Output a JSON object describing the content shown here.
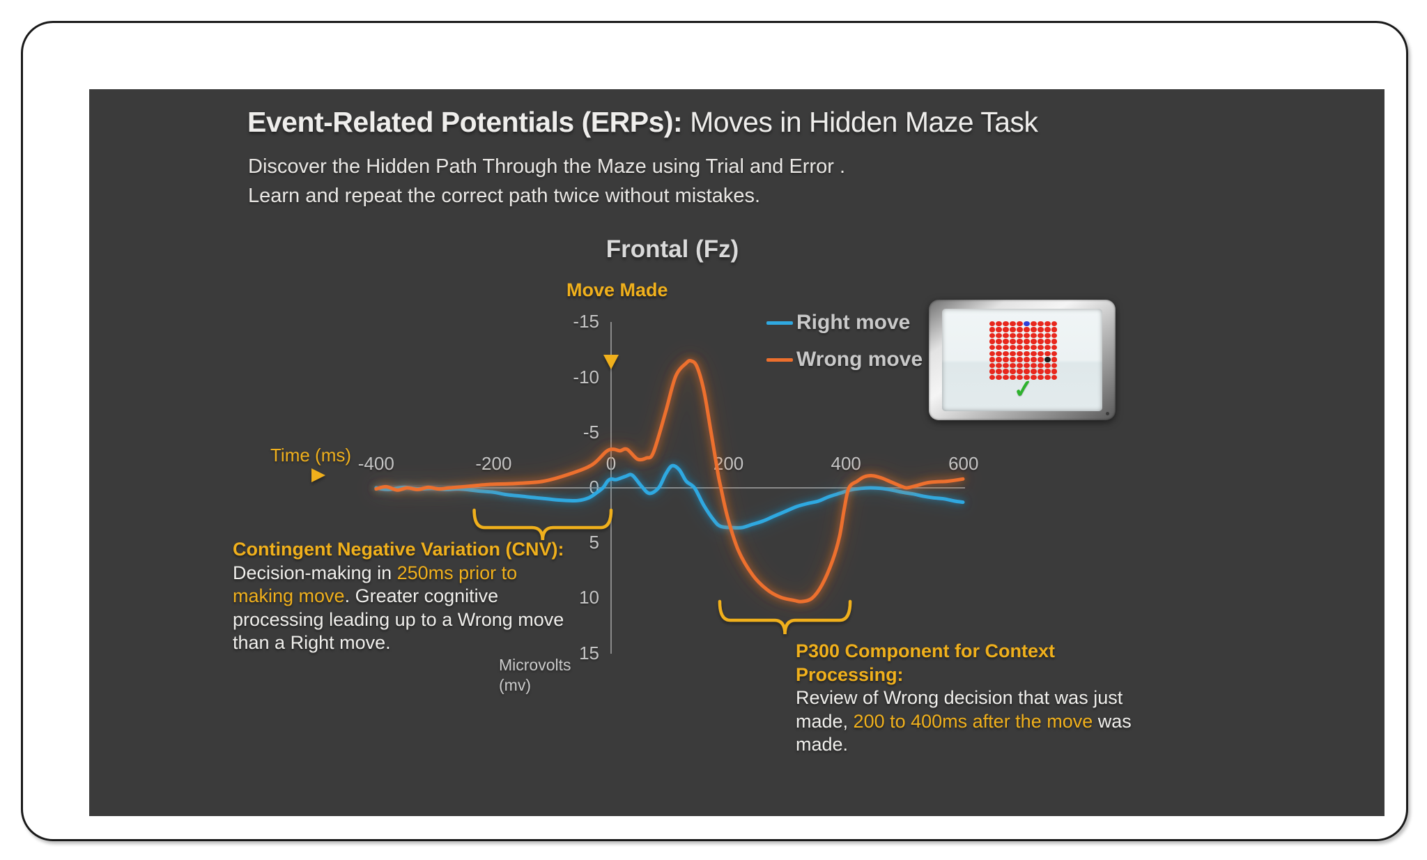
{
  "slide": {
    "title_bold": "Event-Related Potentials (ERPs):",
    "title_rest": " Moves in Hidden Maze Task",
    "subtitle_line1": "Discover the Hidden Path Through the Maze using Trial and Error .",
    "subtitle_line2": "Learn and repeat the correct path twice without mistakes."
  },
  "chart_data": {
    "type": "line",
    "title": "Frontal (Fz)",
    "x_axis": {
      "label": "Time (ms)",
      "ticks": [
        -400,
        -200,
        0,
        200,
        400,
        600
      ],
      "range": [
        -400,
        600
      ],
      "unit": "ms"
    },
    "y_axis": {
      "label_line1": "Microvolts",
      "label_line2": "(mv)",
      "ticks": [
        -15,
        -10,
        -5,
        0,
        5,
        10,
        15
      ],
      "range": [
        -15,
        15
      ],
      "inverted_negative_up": true
    },
    "event_marker": {
      "label": "Move Made",
      "time_ms": 0
    },
    "grid": "off",
    "legend_position": "top-right",
    "legend": [
      {
        "name": "Right move",
        "color": "#2FA9E1"
      },
      {
        "name": "Wrong move",
        "color": "#ED6F2D"
      }
    ],
    "series": [
      {
        "name": "Right move",
        "color": "#2FA9E1",
        "points": [
          [
            -400,
            0
          ],
          [
            -380,
            0.15
          ],
          [
            -352,
            -0.05
          ],
          [
            -329,
            0.1
          ],
          [
            -305,
            0.05
          ],
          [
            -281,
            0.15
          ],
          [
            -257,
            0.1
          ],
          [
            -222,
            0.3
          ],
          [
            -200,
            0.4
          ],
          [
            -180,
            0.6
          ],
          [
            -163,
            0.7
          ],
          [
            -145,
            0.8
          ],
          [
            -127,
            0.9
          ],
          [
            -109,
            1.0
          ],
          [
            -91,
            1.1
          ],
          [
            -74,
            1.15
          ],
          [
            -56,
            1.15
          ],
          [
            -38,
            0.9
          ],
          [
            -26,
            0.5
          ],
          [
            -14,
            0
          ],
          [
            -6,
            -0.6
          ],
          [
            0,
            -0.8
          ],
          [
            9,
            -0.75
          ],
          [
            25,
            -1.05
          ],
          [
            36,
            -1.15
          ],
          [
            51,
            -0.2
          ],
          [
            65,
            0.5
          ],
          [
            81,
            0
          ],
          [
            93,
            -1.25
          ],
          [
            104,
            -2.0
          ],
          [
            116,
            -1.65
          ],
          [
            128,
            -0.6
          ],
          [
            142,
            0
          ],
          [
            158,
            1.6
          ],
          [
            176,
            3.0
          ],
          [
            187,
            3.5
          ],
          [
            205,
            3.6
          ],
          [
            223,
            3.6
          ],
          [
            241,
            3.3
          ],
          [
            259,
            3.0
          ],
          [
            276,
            2.6
          ],
          [
            294,
            2.2
          ],
          [
            316,
            1.7
          ],
          [
            336,
            1.4
          ],
          [
            353,
            1.2
          ],
          [
            371,
            0.8
          ],
          [
            389,
            0.5
          ],
          [
            407,
            0.2
          ],
          [
            425,
            0.05
          ],
          [
            442,
            0
          ],
          [
            460,
            0.05
          ],
          [
            478,
            0.2
          ],
          [
            496,
            0.4
          ],
          [
            514,
            0.55
          ],
          [
            531,
            0.75
          ],
          [
            549,
            0.9
          ],
          [
            567,
            1.0
          ],
          [
            585,
            1.2
          ],
          [
            599,
            1.3
          ]
        ]
      },
      {
        "name": "Wrong move",
        "color": "#ED6F2D",
        "points": [
          [
            -400,
            0.1
          ],
          [
            -383,
            -0.1
          ],
          [
            -364,
            0.2
          ],
          [
            -347,
            0
          ],
          [
            -329,
            0.15
          ],
          [
            -311,
            -0.05
          ],
          [
            -293,
            0.1
          ],
          [
            -275,
            0
          ],
          [
            -251,
            -0.1
          ],
          [
            -210,
            -0.3
          ],
          [
            -163,
            -0.4
          ],
          [
            -115,
            -0.6
          ],
          [
            -68,
            -1.3
          ],
          [
            -32,
            -2.1
          ],
          [
            -8,
            -3.3
          ],
          [
            4,
            -3.5
          ],
          [
            15,
            -3.35
          ],
          [
            27,
            -3.5
          ],
          [
            45,
            -2.6
          ],
          [
            60,
            -2.7
          ],
          [
            72,
            -3.2
          ],
          [
            93,
            -6.9
          ],
          [
            110,
            -10.1
          ],
          [
            128,
            -11.3
          ],
          [
            136,
            -11.5
          ],
          [
            146,
            -11.0
          ],
          [
            158,
            -8.8
          ],
          [
            170,
            -5.1
          ],
          [
            182,
            -1.3
          ],
          [
            187,
            0
          ],
          [
            199,
            2.8
          ],
          [
            217,
            5.7
          ],
          [
            241,
            7.9
          ],
          [
            265,
            9.2
          ],
          [
            288,
            9.9
          ],
          [
            312,
            10.2
          ],
          [
            324,
            10.3
          ],
          [
            342,
            10.0
          ],
          [
            359,
            8.8
          ],
          [
            377,
            6.6
          ],
          [
            389,
            4.4
          ],
          [
            397,
            1.9
          ],
          [
            405,
            0
          ],
          [
            419,
            -0.6
          ],
          [
            431,
            -1.0
          ],
          [
            445,
            -1.1
          ],
          [
            460,
            -0.9
          ],
          [
            478,
            -0.5
          ],
          [
            496,
            -0.1
          ],
          [
            504,
            0
          ],
          [
            520,
            -0.2
          ],
          [
            537,
            -0.45
          ],
          [
            555,
            -0.55
          ],
          [
            573,
            -0.6
          ],
          [
            599,
            -0.8
          ]
        ]
      }
    ],
    "braces": [
      {
        "name": "cnv-span",
        "from_ms": -233,
        "to_ms": 0
      },
      {
        "name": "p300-span",
        "from_ms": 185,
        "to_ms": 407
      }
    ]
  },
  "annotations": {
    "cnv": {
      "title": "Contingent Negative Variation (CNV):",
      "lines": [
        [
          {
            "t": "Decision-making in ",
            "c": "w"
          },
          {
            "t": "250ms prior to",
            "c": "y"
          }
        ],
        [
          {
            "t": "making move",
            "c": "y"
          },
          {
            "t": ". Greater cognitive",
            "c": "w"
          }
        ],
        [
          {
            "t": "processing leading up to a Wrong move",
            "c": "w"
          }
        ],
        [
          {
            "t": "than a Right move.",
            "c": "w"
          }
        ]
      ]
    },
    "p300": {
      "title": "P300 Component for Context Processing:",
      "lines": [
        [
          {
            "t": "Review of Wrong decision that was just",
            "c": "w"
          }
        ],
        [
          {
            "t": "made, ",
            "c": "w"
          },
          {
            "t": "200 to 400ms after the move",
            "c": "y"
          },
          {
            "t": " was",
            "c": "w"
          }
        ],
        [
          {
            "t": "made.",
            "c": "w"
          }
        ]
      ]
    }
  },
  "maze_screen": {
    "rows": 10,
    "cols": 10,
    "dot_color": "#E8271D",
    "special_dots": [
      {
        "row": 0,
        "col": 5,
        "color": "#2F3FD8",
        "name": "current-position-dot"
      },
      {
        "row": 6,
        "col": 8,
        "color": "#1C1C1C",
        "name": "target-dot"
      }
    ],
    "checkmark": "✓",
    "checkmark_color": "#2DB32D"
  },
  "colors": {
    "slide_bg": "#3B3B3B",
    "page_bg": "#FFFFFF",
    "accent_yellow": "#F0B01C",
    "right_move_blue": "#2FA9E1",
    "wrong_move_orange": "#ED6F2D",
    "text_white": "#F0EFED",
    "chart_gray": "#C8C8C8",
    "axis_gray": "#9A9A9A"
  }
}
